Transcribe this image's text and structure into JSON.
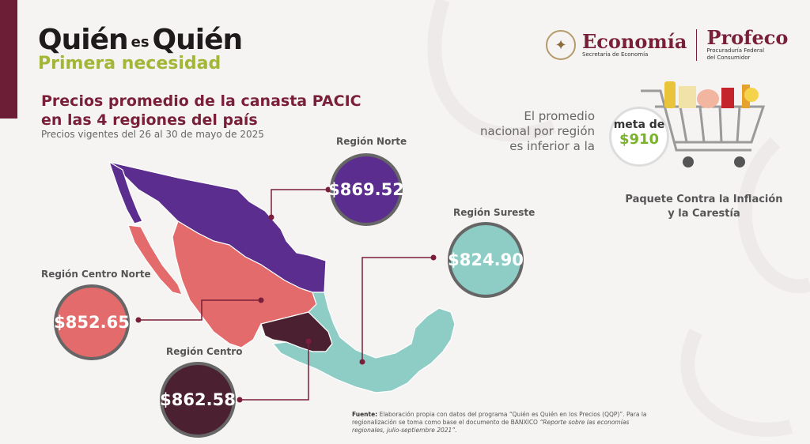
{
  "brand": {
    "quien1": "Quién",
    "es": "es",
    "quien2": "Quién",
    "subtitle": "Primera necesidad"
  },
  "logos": {
    "economia": "Economía",
    "economia_sub": "Secretaría de Economía",
    "profeco": "Profeco",
    "profeco_sub1": "Procuraduría Federal",
    "profeco_sub2": "del Consumidor"
  },
  "title": {
    "line1": "Precios promedio de la canasta PACIC",
    "line2": "en las 4 regiones del país",
    "subtitle": "Precios vigentes del 26 al 30 de mayo de 2025"
  },
  "promedio": {
    "l1": "El promedio",
    "l2": "nacional por región",
    "l3": "es inferior a la"
  },
  "meta": {
    "label": "meta de",
    "value": "$910"
  },
  "paquete": {
    "l1": "Paquete Contra la Inflación",
    "l2": "y la Carestía"
  },
  "regions": {
    "norte": {
      "label": "Región Norte",
      "price": "$869.52",
      "color": "#5b2d8e"
    },
    "sureste": {
      "label": "Región Sureste",
      "price": "$824.90",
      "color": "#8ecdc6"
    },
    "centro_norte": {
      "label": "Región Centro Norte",
      "price": "$852.65",
      "color": "#e46b6b"
    },
    "centro": {
      "label": "Región Centro",
      "price": "$862.58",
      "color": "#4b2131"
    }
  },
  "fuente": {
    "label": "Fuente:",
    "text1": "Elaboración propia con datos del programa “Quién es Quién en los Precios (QQP)”.",
    "text2": "Para la regionalización se toma como base el documento de BANXICO",
    "ref": "“Reporte sobre las economías regionales, julio-septiembre 2021”."
  }
}
